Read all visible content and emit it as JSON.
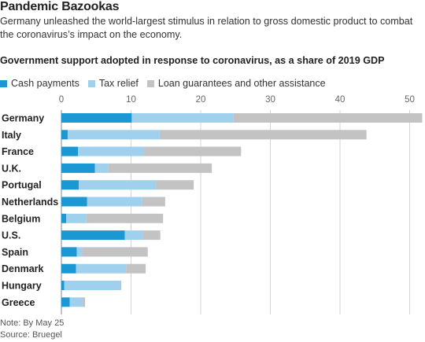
{
  "header": {
    "title": "Pandemic Bazookas",
    "subtitle_line1": "Germany unleashed the world-largest stimulus in relation to gross domestic product to combat",
    "subtitle_line2": "the coronavirus’s impact on the economy."
  },
  "footer": {
    "note": "Note: By May 25",
    "source": "Source: Bruegel"
  },
  "colors": {
    "cash": "#1b97d4",
    "tax": "#9fd1ef",
    "loan": "#c3c3c3",
    "grid": "#d4d4d4"
  },
  "chart_data": {
    "type": "bar",
    "orientation": "horizontal",
    "stacked": true,
    "title": "Government support adopted in response to coronavirus, as a share of 2019 GDP",
    "categories": [
      "Germany",
      "Italy",
      "France",
      "U.K.",
      "Portugal",
      "Netherlands",
      "Belgium",
      "U.S.",
      "Spain",
      "Denmark",
      "Hungary",
      "Greece"
    ],
    "series": [
      {
        "name": "Cash payments",
        "values": [
          10.1,
          0.9,
          2.4,
          4.8,
          2.5,
          3.7,
          0.7,
          9.1,
          2.2,
          2.1,
          0.4,
          1.2
        ]
      },
      {
        "name": "Tax relief",
        "values": [
          14.6,
          13.2,
          9.4,
          1.9,
          11.1,
          7.9,
          2.9,
          2.6,
          0.8,
          7.2,
          8.2,
          1.8
        ]
      },
      {
        "name": "Loan guarantees and other assistance",
        "values": [
          27.1,
          29.7,
          14.0,
          14.9,
          5.4,
          3.3,
          11.0,
          2.5,
          9.4,
          2.8,
          0,
          0.4
        ]
      }
    ],
    "xlim": [
      0,
      52
    ],
    "xticks": [
      0,
      10,
      20,
      30,
      40,
      50
    ],
    "grid": true,
    "legend": "top-left"
  }
}
